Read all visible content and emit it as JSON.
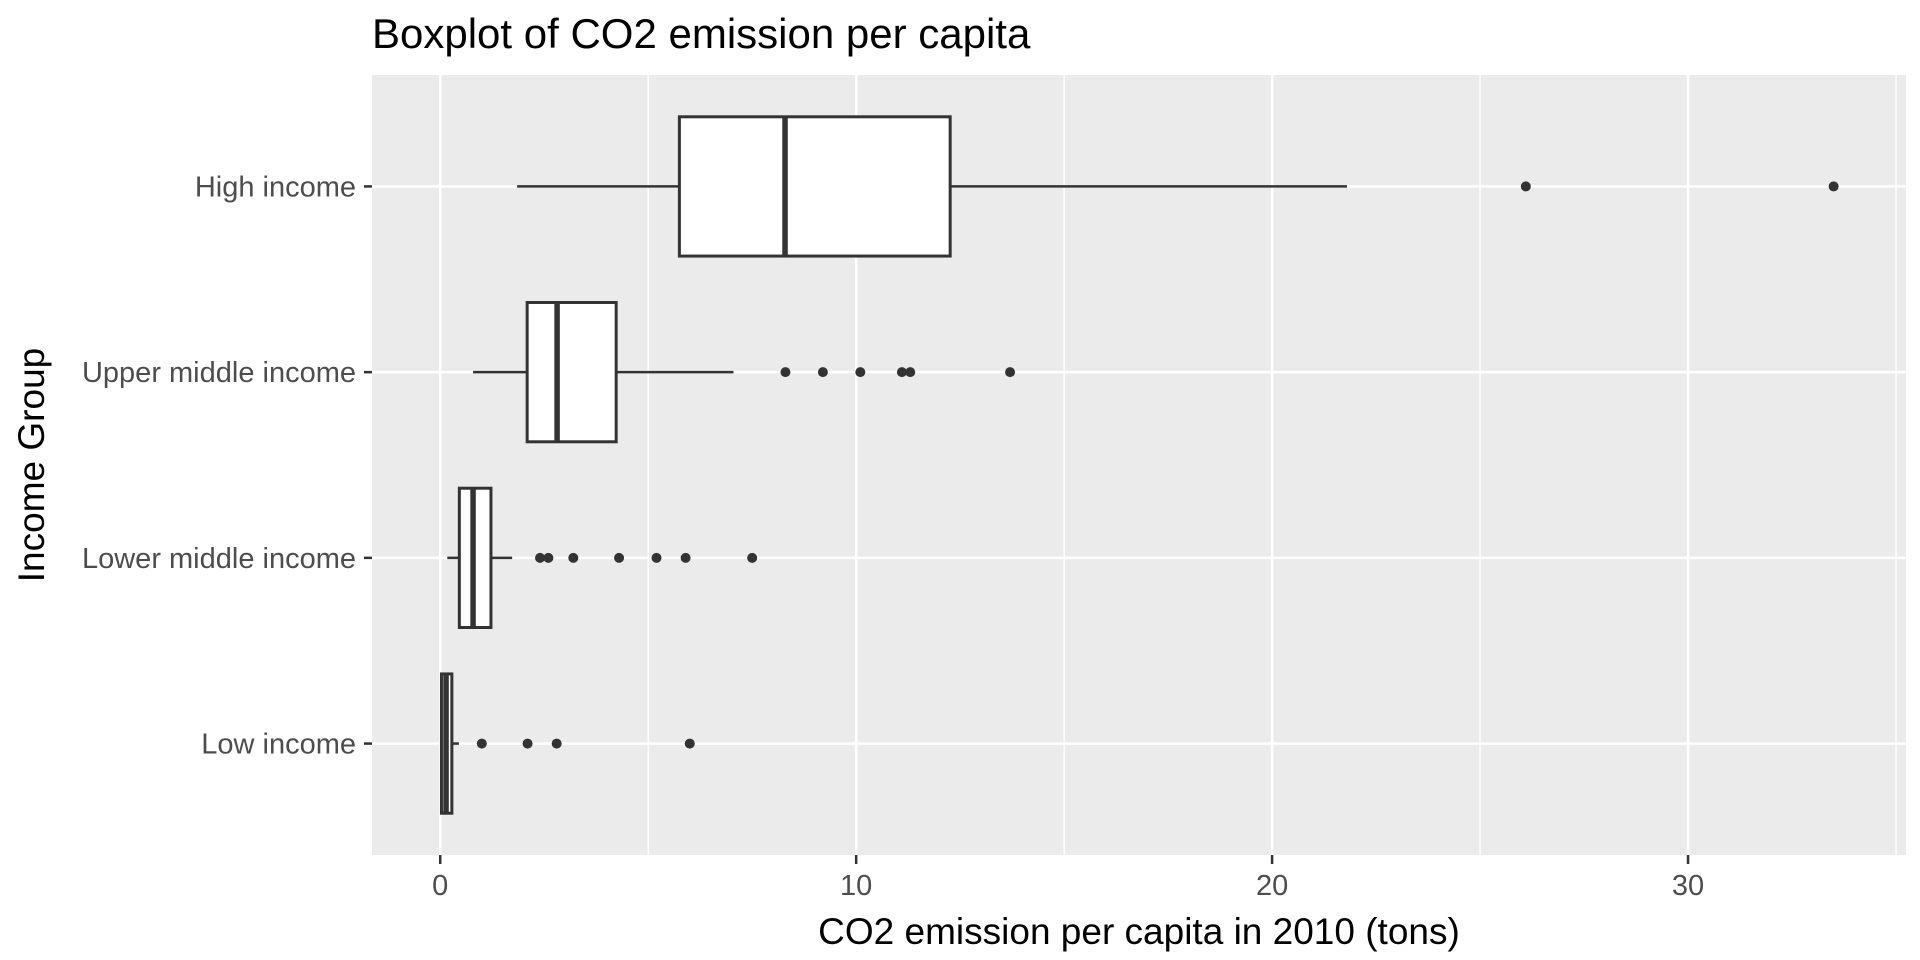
{
  "chart_data": {
    "type": "boxplot",
    "orientation": "horizontal",
    "title": "Boxplot of CO2 emission per capita",
    "xlabel": "CO2 emission per capita in 2010 (tons)",
    "ylabel": "Income Group",
    "xlim": [
      -1.64,
      35.24
    ],
    "grid": true,
    "legend_position": "none",
    "x_major_ticks": [
      {
        "value": 0,
        "label": "0"
      },
      {
        "value": 10,
        "label": "10"
      },
      {
        "value": 20,
        "label": "20"
      },
      {
        "value": 30,
        "label": "30"
      }
    ],
    "x_minor_ticks": [
      5,
      15,
      25,
      35
    ],
    "series": [
      {
        "label": "High income",
        "whisker_low": 1.85,
        "q1": 5.75,
        "median": 8.29,
        "q3": 12.26,
        "whisker_high": 21.8,
        "outliers": [
          26.1,
          33.5
        ]
      },
      {
        "label": "Upper middle income",
        "whisker_low": 0.79,
        "q1": 2.09,
        "median": 2.81,
        "q3": 4.23,
        "whisker_high": 7.05,
        "outliers": [
          8.3,
          9.2,
          10.1,
          11.1,
          11.3,
          13.7
        ]
      },
      {
        "label": "Lower middle income",
        "whisker_low": 0.17,
        "q1": 0.46,
        "median": 0.79,
        "q3": 1.22,
        "whisker_high": 1.73,
        "outliers": [
          2.4,
          2.6,
          3.2,
          4.3,
          5.2,
          5.9,
          7.5
        ]
      },
      {
        "label": "Low income",
        "whisker_low": 0.01,
        "q1": 0.03,
        "median": 0.14,
        "q3": 0.28,
        "whisker_high": 0.45,
        "outliers": [
          1.0,
          2.1,
          2.8,
          6.0
        ]
      }
    ],
    "style": {
      "panel_bg": "#EBEBEB",
      "grid_color": "#FFFFFF",
      "box_stroke": "#333333",
      "box_fill": "#FFFFFF",
      "outlier_color": "#333333",
      "title_color": "#000000",
      "axis_title_color": "#000000",
      "tick_label_color": "#4D4D4D",
      "tick_mark_color": "#333333"
    }
  }
}
